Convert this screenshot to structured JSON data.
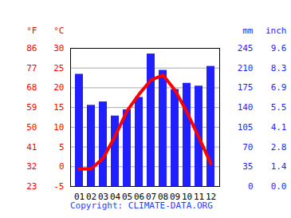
{
  "chart_data": {
    "type": "bar",
    "caption": "Copyright: CLIMATE-DATA.ORG",
    "categories": [
      "01",
      "02",
      "03",
      "04",
      "05",
      "06",
      "07",
      "08",
      "09",
      "10",
      "11",
      "12"
    ],
    "series": [
      {
        "type": "bar",
        "axis": "y2",
        "color": "#1f1fff",
        "values": [
          199,
          144,
          150,
          125,
          136,
          158,
          235,
          206,
          172,
          183,
          178,
          213
        ]
      },
      {
        "type": "line",
        "color": "#ff0000",
        "values": [
          -0.6,
          -0.5,
          2.2,
          7.8,
          14.2,
          18.4,
          22,
          23.2,
          19.4,
          13.8,
          7.4,
          0.8
        ]
      }
    ],
    "ylim": [
      -5,
      30
    ],
    "yticks": [
      -5,
      0,
      5,
      10,
      15,
      20,
      25,
      30
    ],
    "y_label": "°C",
    "y_f_label": "°F",
    "y_f_ticks": [
      {
        "value": -5,
        "label": "23"
      },
      {
        "value": 0,
        "label": "32"
      },
      {
        "value": 5,
        "label": "41"
      },
      {
        "value": 10,
        "label": "50"
      },
      {
        "value": 15,
        "label": "59"
      },
      {
        "value": 20,
        "label": "68"
      },
      {
        "value": 25,
        "label": "77"
      },
      {
        "value": 30,
        "label": "86"
      }
    ],
    "y2lim": [
      0,
      245
    ],
    "y2ticks": [
      0,
      35,
      70,
      105,
      140,
      175,
      210,
      245
    ],
    "y2_label": "mm",
    "y2_inch_label": "inch",
    "y2_inch_ticks": [
      {
        "value": 0,
        "label": "0.0"
      },
      {
        "value": 35,
        "label": "1.4"
      },
      {
        "value": 70,
        "label": "2.8"
      },
      {
        "value": 105,
        "label": "4.1"
      },
      {
        "value": 140,
        "label": "5.5"
      },
      {
        "value": 175,
        "label": "6.9"
      },
      {
        "value": 210,
        "label": "8.3"
      },
      {
        "value": 245,
        "label": "9.6"
      }
    ],
    "grid": true
  }
}
